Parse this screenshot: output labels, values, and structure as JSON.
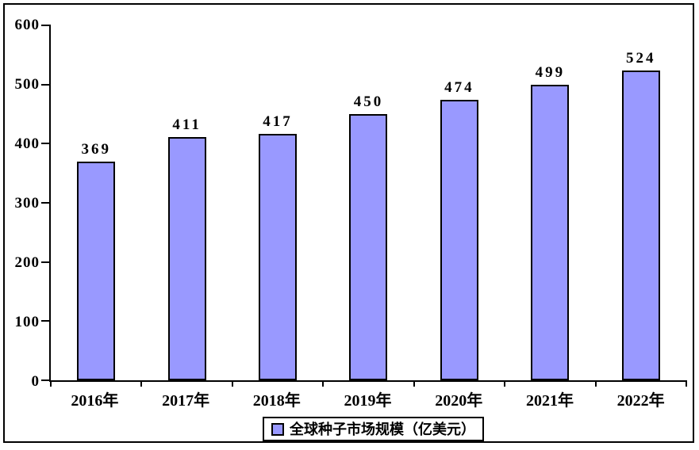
{
  "chart_data": {
    "type": "bar",
    "title": "",
    "categories": [
      "2016年",
      "2017年",
      "2018年",
      "2019年",
      "2020年",
      "2021年",
      "2022年"
    ],
    "series": [
      {
        "name": "全球种子市场规模（亿美元）",
        "values": [
          369,
          411,
          417,
          450,
          474,
          499,
          524
        ]
      }
    ],
    "value_labels": [
      "369",
      "411",
      "417",
      "450",
      "474",
      "499",
      "524"
    ],
    "ylim": [
      0,
      600
    ],
    "yticks": [
      0,
      100,
      200,
      300,
      400,
      500,
      600
    ],
    "xlabel": "",
    "ylabel": "",
    "grid": false,
    "legend_position": "bottom-center",
    "colors": {
      "bar_fill": "#9999FF",
      "bar_border": "#000000",
      "axis": "#000000",
      "text": "#000000",
      "background": "#ffffff"
    }
  },
  "legend": {
    "label": "全球种子市场规模（亿美元）"
  }
}
